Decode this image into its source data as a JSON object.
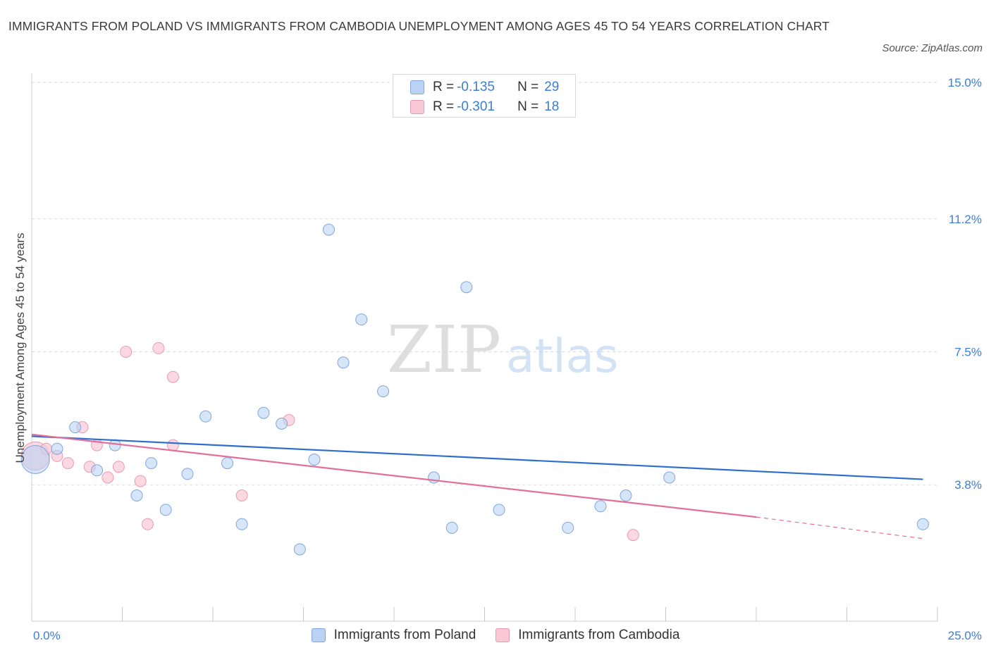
{
  "title": "IMMIGRANTS FROM POLAND VS IMMIGRANTS FROM CAMBODIA UNEMPLOYMENT AMONG AGES 45 TO 54 YEARS CORRELATION CHART",
  "source": "Source: ZipAtlas.com",
  "watermark": {
    "zip": "ZIP",
    "atlas": "atlas"
  },
  "legend_top": {
    "rows": [
      {
        "r_label": "R =",
        "r_value": "-0.135",
        "n_label": "N =",
        "n_value": "29"
      },
      {
        "r_label": "R =",
        "r_value": "-0.301",
        "n_label": "N =",
        "n_value": "18"
      }
    ]
  },
  "legend_bottom": {
    "items": [
      "Immigrants from Poland",
      "Immigrants from Cambodia"
    ]
  },
  "colors": {
    "poland_fill": "#bad3f4",
    "poland_stroke": "#7fa6e0",
    "poland_line": "#2f6fcc",
    "cambodia_fill": "#f9c7d6",
    "cambodia_stroke": "#e99ab3",
    "cambodia_line": "#e3709a",
    "axis_label": "#3c7dd6",
    "grid": "#d9d9d9"
  },
  "chart_data": {
    "type": "scatter",
    "title": "IMMIGRANTS FROM POLAND VS IMMIGRANTS FROM CAMBODIA UNEMPLOYMENT AMONG AGES 45 TO 54 YEARS CORRELATION CHART",
    "xlabel": "",
    "ylabel": "Unemployment Among Ages 45 to 54 years",
    "xlim": [
      0,
      25
    ],
    "ylim": [
      0,
      15
    ],
    "x_tick_labels": [
      "0.0%",
      "25.0%"
    ],
    "y_ticks": [
      3.8,
      7.5,
      11.2,
      15.0
    ],
    "y_tick_labels": [
      "3.8%",
      "7.5%",
      "11.2%",
      "15.0%"
    ],
    "series": [
      {
        "name": "Immigrants from Poland",
        "r": -0.135,
        "n": 29,
        "points": [
          {
            "x": 0.1,
            "y": 4.5,
            "big": true
          },
          {
            "x": 0.7,
            "y": 4.8
          },
          {
            "x": 1.2,
            "y": 5.4
          },
          {
            "x": 1.8,
            "y": 4.2
          },
          {
            "x": 2.3,
            "y": 4.9
          },
          {
            "x": 2.9,
            "y": 3.5
          },
          {
            "x": 3.3,
            "y": 4.4
          },
          {
            "x": 3.7,
            "y": 3.1
          },
          {
            "x": 4.3,
            "y": 4.1
          },
          {
            "x": 4.8,
            "y": 5.7
          },
          {
            "x": 5.4,
            "y": 4.4
          },
          {
            "x": 5.8,
            "y": 2.7
          },
          {
            "x": 6.4,
            "y": 5.8
          },
          {
            "x": 6.9,
            "y": 5.5
          },
          {
            "x": 7.4,
            "y": 2.0
          },
          {
            "x": 7.8,
            "y": 4.5
          },
          {
            "x": 8.2,
            "y": 10.9
          },
          {
            "x": 8.6,
            "y": 7.2
          },
          {
            "x": 9.1,
            "y": 8.4
          },
          {
            "x": 9.7,
            "y": 6.4
          },
          {
            "x": 11.1,
            "y": 4.0
          },
          {
            "x": 11.6,
            "y": 2.6
          },
          {
            "x": 12.0,
            "y": 9.3
          },
          {
            "x": 12.9,
            "y": 3.1
          },
          {
            "x": 14.8,
            "y": 2.6
          },
          {
            "x": 15.7,
            "y": 3.2
          },
          {
            "x": 16.4,
            "y": 3.5
          },
          {
            "x": 17.6,
            "y": 4.0
          },
          {
            "x": 24.6,
            "y": 2.7
          }
        ],
        "trend": {
          "x0": 0,
          "y0": 5.15,
          "x1": 24.6,
          "y1": 3.95
        }
      },
      {
        "name": "Immigrants from Cambodia",
        "r": -0.301,
        "n": 18,
        "points": [
          {
            "x": 0.1,
            "y": 4.6,
            "big": true
          },
          {
            "x": 0.4,
            "y": 4.8
          },
          {
            "x": 0.7,
            "y": 4.6
          },
          {
            "x": 1.0,
            "y": 4.4
          },
          {
            "x": 1.4,
            "y": 5.4
          },
          {
            "x": 1.6,
            "y": 4.3
          },
          {
            "x": 1.8,
            "y": 4.9
          },
          {
            "x": 2.1,
            "y": 4.0
          },
          {
            "x": 2.4,
            "y": 4.3
          },
          {
            "x": 2.6,
            "y": 7.5
          },
          {
            "x": 3.0,
            "y": 3.9
          },
          {
            "x": 3.2,
            "y": 2.7
          },
          {
            "x": 3.5,
            "y": 7.6
          },
          {
            "x": 3.9,
            "y": 6.8
          },
          {
            "x": 3.9,
            "y": 4.9
          },
          {
            "x": 5.8,
            "y": 3.5
          },
          {
            "x": 7.1,
            "y": 5.6
          },
          {
            "x": 16.6,
            "y": 2.4
          }
        ],
        "trend": {
          "x0": 0,
          "y0": 5.2,
          "x1": 20.0,
          "y1": 2.9
        },
        "trend_dashed_extension": {
          "x0": 20.0,
          "y0": 2.9,
          "x1": 24.6,
          "y1": 2.3
        }
      }
    ]
  }
}
